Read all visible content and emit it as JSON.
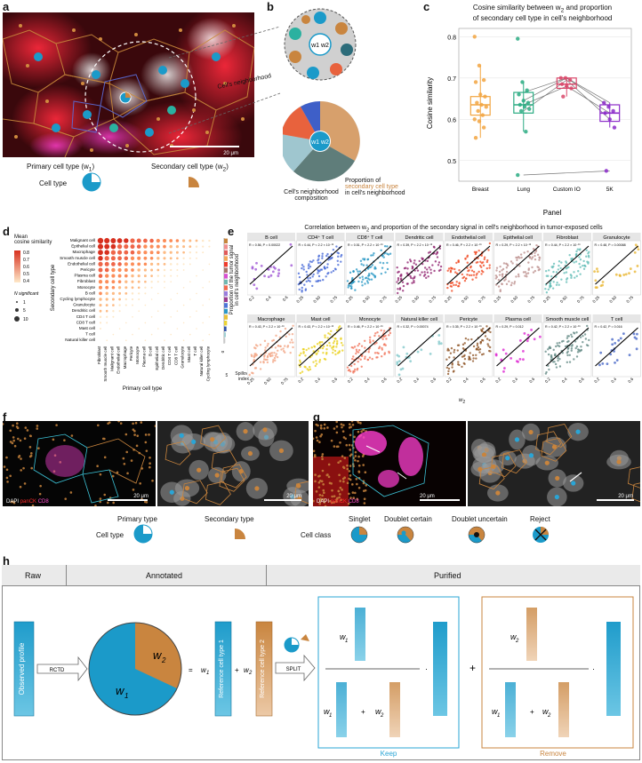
{
  "panels": {
    "a": "a",
    "b": "b",
    "c": "c",
    "d": "d",
    "e": "e",
    "f": "f",
    "g": "g",
    "h": "h"
  },
  "a": {
    "scalebar": "20 μm",
    "neighborhood_label": "Cell's neighborhood",
    "legend_title": "Cell type",
    "primary_label": "Primary cell type (w",
    "primary_sub": "1",
    "secondary_label": "Secondary cell type (w",
    "secondary_sub": "2"
  },
  "b": {
    "composition_label_1": "Cell's neighborhood",
    "composition_label_2": "composition",
    "proportion_label_1": "Proportion of",
    "proportion_label_2": "secondary cell type",
    "proportion_label_3": "in cell's neighborhood",
    "center_top": "w1 w2",
    "center_bottom": "w1 w2"
  },
  "c": {
    "chart_data": {
      "type": "box",
      "title": "Cosine similarity between w2 and proportion of secondary cell type in cell's neighborhood",
      "title_line1": "Cosine similarity between w",
      "title_sub": "2",
      "title_line1_end": " and proportion",
      "title_line2": "of secondary cell type in cell's neighborhood",
      "xlabel": "Panel",
      "ylabel": "Cosine similarity",
      "ylim": [
        0.45,
        0.82
      ],
      "yticks": [
        "0.5",
        "0.6",
        "0.7",
        "0.8"
      ],
      "categories": [
        "Breast",
        "Lung",
        "Custom IO",
        "5K"
      ],
      "colors": [
        "#f2a541",
        "#2aab82",
        "#d9486a",
        "#8b2bc9"
      ],
      "boxes": [
        {
          "q1": 0.61,
          "median": 0.635,
          "q3": 0.655,
          "lo": 0.555,
          "hi": 0.73
        },
        {
          "q1": 0.615,
          "median": 0.635,
          "q3": 0.665,
          "lo": 0.57,
          "hi": 0.69
        },
        {
          "q1": 0.675,
          "median": 0.685,
          "q3": 0.7,
          "lo": 0.655,
          "hi": 0.7
        },
        {
          "q1": 0.595,
          "median": 0.615,
          "q3": 0.635,
          "lo": 0.58,
          "hi": 0.64
        }
      ],
      "points": [
        [
          0.8,
          0.73,
          0.695,
          0.69,
          0.66,
          0.655,
          0.64,
          0.635,
          0.63,
          0.62,
          0.61,
          0.6,
          0.595,
          0.58,
          0.555
        ],
        [
          0.795,
          0.69,
          0.67,
          0.66,
          0.645,
          0.64,
          0.635,
          0.63,
          0.625,
          0.62,
          0.57,
          0.465
        ],
        [
          0.7,
          0.7,
          0.695,
          0.685,
          0.68,
          0.675,
          0.655
        ],
        [
          0.64,
          0.63,
          0.62,
          0.615,
          0.6,
          0.58,
          0.475
        ]
      ],
      "lines": [
        [
          null,
          0.665,
          0.7,
          0.64
        ],
        [
          null,
          0.635,
          0.68,
          0.615
        ],
        [
          null,
          0.62,
          0.695,
          0.6
        ],
        [
          null,
          0.645,
          0.7,
          0.63
        ],
        [
          null,
          0.465,
          null,
          0.475
        ]
      ]
    }
  },
  "d": {
    "chart_data": {
      "type": "dot",
      "ylabel": "Secondary cell type",
      "xlabel": "Primary cell type",
      "legend_mean_title_1": "Mean",
      "legend_mean_title_2": "cosine similarity",
      "color_ticks": [
        "0.8",
        "0.7",
        "0.6",
        "0.5",
        "0.4"
      ],
      "legend_n_title": "N significant",
      "n_ticks": [
        "1",
        "5",
        "10"
      ],
      "rows": [
        "Malignant cell",
        "Epithelial cell",
        "Macrophage",
        "Smooth muscle cell",
        "Endothelial cell",
        "Pericyte",
        "Plasma cell",
        "Fibroblast",
        "Monocyte",
        "B cell",
        "Cycling lymphocyte",
        "Granulocyte",
        "Dendritic cell",
        "CD4 T cell",
        "CD8 T cell",
        "Mast cell",
        "T cell",
        "Natural killer cell"
      ],
      "cols": [
        "Fibroblast",
        "Smooth muscle cell",
        "Malignant cell",
        "Endothelial cell",
        "Macrophage",
        "Pericyte",
        "Monocyte",
        "Plasma cell",
        "B cell",
        "Epithelial cell",
        "Dendritic cell",
        "CD4 T cell",
        "CD8 T cell",
        "Granulocyte",
        "Mast cell",
        "T cell",
        "Natural killer cell",
        "Cycling lymphocyte"
      ],
      "spillover_label_1": "Spillover",
      "spillover_label_2": "index",
      "spillover_ticks": [
        "0",
        "0.1",
        "0.2"
      ],
      "spillover_values": [
        0.26,
        0.21,
        0.19,
        0.17,
        0.16,
        0.14,
        0.12,
        0.1,
        0.09,
        0.07,
        0.06,
        0.05,
        0.04,
        0.03,
        0.025,
        0.02,
        0.015,
        0.01
      ],
      "spillover_colors": [
        "#c6853c",
        "#f08f8f",
        "#e05a5a",
        "#f3a75a",
        "#ef3b2c",
        "#a7736a",
        "#d94fd1",
        "#6fb7b0",
        "#f26a4f",
        "#9a7ddc",
        "#9a3b8f",
        "#4e74d8",
        "#2b97c6",
        "#e8c13a",
        "#ead233",
        "#3153a8",
        "#9fd0d3",
        "#c8c8c8"
      ]
    }
  },
  "e": {
    "title": "Correlation between w",
    "title_sub": "2",
    "title_end": " and proportion of the secondary signal in cell's neighborhood in tumor-exposed cells",
    "ylabel_1": "Proportion of the tumor signal",
    "ylabel_2": "in cell's neighborhood",
    "xlabel": "w",
    "xlabel_sub": "2",
    "panels": [
      {
        "name": "B cell",
        "stat": "R = 0.56, P = 0.00022",
        "color": "#9b4fd3",
        "xt": [
          "0.2",
          "0.4",
          "0.6"
        ]
      },
      {
        "name": "CD4⁺ T cell",
        "stat": "R = 0.44, P < 2.2 × 10⁻¹⁶",
        "color": "#3f63d6",
        "xt": [
          "0.25",
          "0.50",
          "0.75"
        ]
      },
      {
        "name": "CD8⁺ T cell",
        "stat": "R = 0.51, P < 2.2 × 10⁻¹⁶",
        "color": "#1f93c2",
        "xt": [
          "0.25",
          "0.50",
          "0.75"
        ]
      },
      {
        "name": "Dendritic cell",
        "stat": "R = 0.39, P < 2.2 × 10⁻¹⁶",
        "color": "#8c1a6a",
        "xt": [
          "0.25",
          "0.50",
          "0.75"
        ]
      },
      {
        "name": "Endothelial cell",
        "stat": "R = 0.46, P < 2.2 × 10⁻¹⁶",
        "color": "#f0451e",
        "xt": [
          "0.25",
          "0.50",
          "0.75"
        ]
      },
      {
        "name": "Epithelial cell",
        "stat": "R = 0.29, P < 2.2 × 10⁻¹⁶",
        "color": "#b98b88",
        "xt": [
          "0.25",
          "0.50",
          "0.75"
        ]
      },
      {
        "name": "Fibroblast",
        "stat": "R = 0.44, P < 2.2 × 10⁻¹⁶",
        "color": "#5ebbb4",
        "xt": [
          "0.25",
          "0.50",
          "0.75"
        ]
      },
      {
        "name": "Granulocyte",
        "stat": "R = 0.48, P = 0.00088",
        "color": "#e8b32a",
        "xt": [
          "0.25",
          "0.50",
          "0.75"
        ]
      },
      {
        "name": "Macrophage",
        "stat": "R = 0.43, P < 2.2 × 10⁻¹⁶",
        "color": "#f2a07d",
        "xt": [
          "0.25",
          "0.50",
          "0.75"
        ]
      },
      {
        "name": "Mast cell",
        "stat": "R = 0.43, P < 2.2 × 10⁻¹⁶",
        "color": "#e9cf13",
        "xt": [
          "0.2",
          "0.4",
          "0.6"
        ]
      },
      {
        "name": "Monocyte",
        "stat": "R = 0.46, P < 2.2 × 10⁻¹⁶",
        "color": "#f07055",
        "xt": [
          "0.2",
          "0.4",
          "0.6"
        ]
      },
      {
        "name": "Natural killer cell",
        "stat": "R = 0.32, P = 0.00074",
        "color": "#7cc5c8",
        "xt": [
          "0.2",
          "0.4",
          "0.6"
        ]
      },
      {
        "name": "Pericyte",
        "stat": "R = 0.35, P < 2.2 × 10⁻¹⁶",
        "color": "#8b4f1f",
        "xt": [
          "0.2",
          "0.4",
          "0.6"
        ]
      },
      {
        "name": "Plasma cell",
        "stat": "R = 0.29, P = 0.012",
        "color": "#dc1fd0",
        "xt": [
          "0.2",
          "0.4",
          "0.6"
        ]
      },
      {
        "name": "Smooth muscle cell",
        "stat": "R = 0.42, P < 2.2 × 10⁻¹⁶",
        "color": "#5e8580",
        "xt": [
          "0.2",
          "0.4",
          "0.6"
        ]
      },
      {
        "name": "T cell",
        "stat": "R = 0.42, P = 0.016",
        "color": "#3d5fc4",
        "xt": [
          "0.2",
          "0.4",
          "0.6"
        ]
      }
    ]
  },
  "f": {
    "dapi": "DAPI",
    "panck": "panCK",
    "cd8": "CD8",
    "scale1": "20 μm",
    "scale2": "20 μm"
  },
  "g": {
    "dapi": "DAPI",
    "panck": "panCK",
    "cd8": "CD8",
    "scale1": "20 μm",
    "scale2": "20 μm"
  },
  "legend2": {
    "cell_type": "Cell type",
    "primary": "Primary type",
    "secondary": "Secondary type",
    "cell_class": "Cell class",
    "classes": [
      "Singlet",
      "Doublet certain",
      "Doublet uncertain",
      "Reject"
    ]
  },
  "h": {
    "headers": [
      "Raw",
      "Annotated",
      "Purified"
    ],
    "observed": "Observed profile",
    "rctd": "RCTD",
    "split": "SPLIT",
    "w1": "w",
    "w1_sub": "1",
    "w2": "w",
    "w2_sub": "2",
    "ref1": "Reference cell type 1",
    "ref2": "Reference cell type 2",
    "keep": "Keep",
    "remove": "Remove",
    "eq": "=",
    "plus": "+",
    "dot": "·"
  },
  "colors": {
    "blue": "#1b9ac9",
    "orange": "#c9853f",
    "teal_box": "#3aaed6",
    "orange_box": "#d29a63"
  }
}
